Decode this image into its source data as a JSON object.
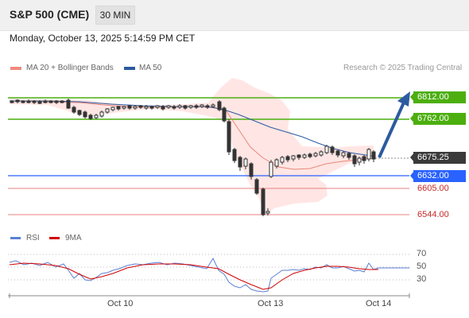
{
  "header": {
    "symbol": "S&P 500 (CME)",
    "timeframe": "30 MIN"
  },
  "datetime": "Monday, October 13, 2025 5:14:59 PM CET",
  "legend": {
    "bb_label": "MA 20 + Bollinger Bands",
    "ma50_label": "MA 50",
    "credit": "Research © 2025 Trading Central",
    "bb_color": "#ef8a80",
    "ma50_color": "#2c5aa0"
  },
  "levels": {
    "r2": "6812.00",
    "r1": "6762.00",
    "current": "6675.25",
    "pivot": "6632.00",
    "s1": "6605.00",
    "s2": "6544.00"
  },
  "colors": {
    "resistance": "#4caf0f",
    "pivot": "#2962ff",
    "support": "#e05050",
    "arrow": "#2c5aa0"
  },
  "rsi_legend": {
    "rsi_label": "RSI",
    "ma_label": "9MA",
    "rsi_color": "#5b7fd6",
    "ma_color": "#d00000"
  },
  "rsi_ticks": [
    "70",
    "50",
    "30"
  ],
  "x_labels": [
    "Oct 10",
    "Oct 13",
    "Oct 14"
  ]
}
